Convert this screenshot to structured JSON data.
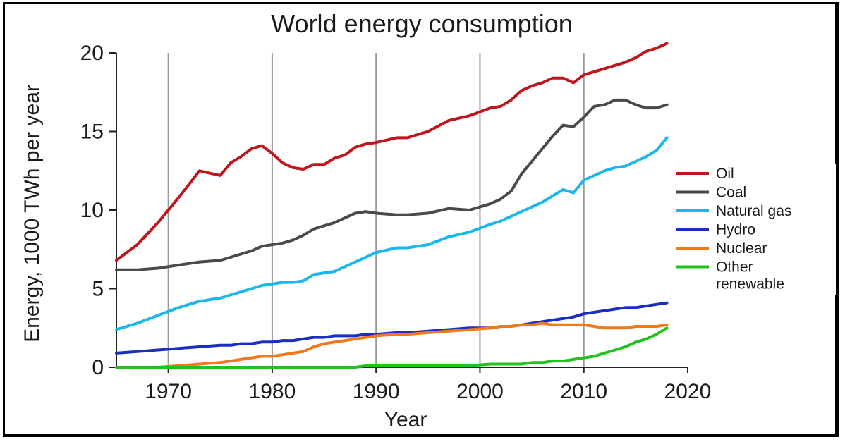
{
  "chart_data": {
    "type": "line",
    "title": "World energy consumption",
    "xlabel": "Year",
    "ylabel": "Energy, 1000 TWh per year",
    "xlim": [
      1965,
      2020
    ],
    "ylim": [
      0,
      20
    ],
    "xticks": [
      1970,
      1980,
      1990,
      2000,
      2010,
      2020
    ],
    "yticks": [
      0,
      5,
      10,
      15,
      20
    ],
    "grid": "vertical",
    "legend_position": "right",
    "x": [
      1965,
      1967,
      1969,
      1971,
      1973,
      1975,
      1976,
      1977,
      1978,
      1979,
      1980,
      1981,
      1982,
      1983,
      1984,
      1985,
      1986,
      1987,
      1988,
      1989,
      1990,
      1992,
      1993,
      1995,
      1997,
      1999,
      2001,
      2002,
      2003,
      2004,
      2005,
      2006,
      2007,
      2008,
      2009,
      2010,
      2011,
      2012,
      2013,
      2014,
      2015,
      2016,
      2017,
      2018
    ],
    "series": [
      {
        "name": "Oil",
        "color": "#c0151b",
        "values": [
          6.8,
          7.8,
          9.2,
          10.8,
          12.5,
          12.2,
          13.0,
          13.4,
          13.9,
          14.1,
          13.6,
          13.0,
          12.7,
          12.6,
          12.9,
          12.9,
          13.3,
          13.5,
          14.0,
          14.2,
          14.3,
          14.6,
          14.6,
          15.0,
          15.7,
          16.0,
          16.5,
          16.6,
          17.0,
          17.6,
          17.9,
          18.1,
          18.4,
          18.4,
          18.1,
          18.6,
          18.8,
          19.0,
          19.2,
          19.4,
          19.7,
          20.1,
          20.3,
          20.6
        ]
      },
      {
        "name": "Coal",
        "color": "#4a4a4a",
        "values": [
          6.2,
          6.2,
          6.3,
          6.5,
          6.7,
          6.8,
          7.0,
          7.2,
          7.4,
          7.7,
          7.8,
          7.9,
          8.1,
          8.4,
          8.8,
          9.0,
          9.2,
          9.5,
          9.8,
          9.9,
          9.8,
          9.7,
          9.7,
          9.8,
          10.1,
          10.0,
          10.4,
          10.7,
          11.2,
          12.3,
          13.1,
          13.9,
          14.7,
          15.4,
          15.3,
          15.9,
          16.6,
          16.7,
          17.0,
          17.0,
          16.7,
          16.5,
          16.5,
          16.7
        ]
      },
      {
        "name": "Natural gas",
        "color": "#19b7ee",
        "values": [
          2.4,
          2.8,
          3.3,
          3.8,
          4.2,
          4.4,
          4.6,
          4.8,
          5.0,
          5.2,
          5.3,
          5.4,
          5.4,
          5.5,
          5.9,
          6.0,
          6.1,
          6.4,
          6.7,
          7.0,
          7.3,
          7.6,
          7.6,
          7.8,
          8.3,
          8.6,
          9.1,
          9.3,
          9.6,
          9.9,
          10.2,
          10.5,
          10.9,
          11.3,
          11.1,
          11.9,
          12.2,
          12.5,
          12.7,
          12.8,
          13.1,
          13.4,
          13.8,
          14.6
        ]
      },
      {
        "name": "Hydro",
        "color": "#1a2fbf",
        "values": [
          0.9,
          1.0,
          1.1,
          1.2,
          1.3,
          1.4,
          1.4,
          1.5,
          1.5,
          1.6,
          1.6,
          1.7,
          1.7,
          1.8,
          1.9,
          1.9,
          2.0,
          2.0,
          2.0,
          2.1,
          2.1,
          2.2,
          2.2,
          2.3,
          2.4,
          2.5,
          2.5,
          2.6,
          2.6,
          2.7,
          2.8,
          2.9,
          3.0,
          3.1,
          3.2,
          3.4,
          3.5,
          3.6,
          3.7,
          3.8,
          3.8,
          3.9,
          4.0,
          4.1
        ]
      },
      {
        "name": "Nuclear",
        "color": "#f07a1a",
        "values": [
          0.0,
          0.0,
          0.0,
          0.1,
          0.2,
          0.3,
          0.4,
          0.5,
          0.6,
          0.7,
          0.7,
          0.8,
          0.9,
          1.0,
          1.3,
          1.5,
          1.6,
          1.7,
          1.8,
          1.9,
          2.0,
          2.1,
          2.1,
          2.2,
          2.3,
          2.4,
          2.5,
          2.6,
          2.6,
          2.7,
          2.7,
          2.8,
          2.7,
          2.7,
          2.7,
          2.7,
          2.6,
          2.5,
          2.5,
          2.5,
          2.6,
          2.6,
          2.6,
          2.7
        ]
      },
      {
        "name": "Other renewable",
        "color": "#22c21e",
        "values": [
          0.0,
          0.0,
          0.0,
          0.0,
          0.0,
          0.0,
          0.0,
          0.0,
          0.0,
          0.0,
          0.0,
          0.0,
          0.0,
          0.0,
          0.0,
          0.0,
          0.0,
          0.0,
          0.0,
          0.1,
          0.1,
          0.1,
          0.1,
          0.1,
          0.1,
          0.1,
          0.2,
          0.2,
          0.2,
          0.2,
          0.3,
          0.3,
          0.4,
          0.4,
          0.5,
          0.6,
          0.7,
          0.9,
          1.1,
          1.3,
          1.6,
          1.8,
          2.1,
          2.5
        ]
      }
    ]
  }
}
